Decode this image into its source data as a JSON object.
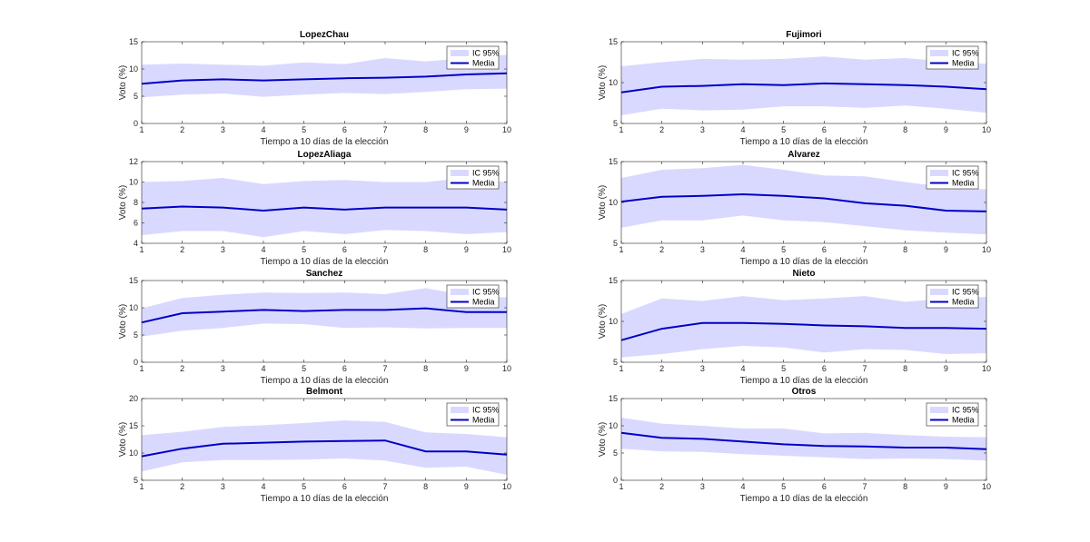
{
  "colors": {
    "band": "#d9d9ff",
    "line": "#0000c8",
    "axis": "#262626",
    "grid": "#e6e6e6"
  },
  "legend": {
    "band_label": "IC 95%",
    "line_label": "Media"
  },
  "chart_data": [
    {
      "type": "line",
      "title": "LopezChau",
      "xlabel": "Tiempo a 10 días de la elección",
      "ylabel": "Voto (%)",
      "x": [
        1,
        2,
        3,
        4,
        5,
        6,
        7,
        8,
        9,
        10
      ],
      "xlim": [
        1,
        10
      ],
      "ylim": [
        0,
        15
      ],
      "yticks": [
        0,
        5,
        10,
        15
      ],
      "legend_position": "top-right",
      "series": [
        {
          "name": "Media",
          "values": [
            7.3,
            7.9,
            8.1,
            7.9,
            8.1,
            8.3,
            8.4,
            8.6,
            9.0,
            9.2
          ]
        },
        {
          "name": "IC 95%",
          "lower": [
            4.8,
            5.3,
            5.5,
            4.9,
            5.3,
            5.6,
            5.4,
            5.8,
            6.3,
            6.4
          ],
          "upper": [
            10.8,
            11.0,
            10.8,
            10.6,
            11.2,
            10.9,
            12.0,
            11.4,
            12.0,
            12.6
          ]
        }
      ]
    },
    {
      "type": "line",
      "title": "Fujimori",
      "xlabel": "Tiempo a 10 días de la elección",
      "ylabel": "Voto (%)",
      "x": [
        1,
        2,
        3,
        4,
        5,
        6,
        7,
        8,
        9,
        10
      ],
      "xlim": [
        1,
        10
      ],
      "ylim": [
        5,
        15
      ],
      "yticks": [
        5,
        10,
        15
      ],
      "legend_position": "top-right",
      "series": [
        {
          "name": "Media",
          "values": [
            8.8,
            9.5,
            9.6,
            9.8,
            9.7,
            9.9,
            9.8,
            9.7,
            9.5,
            9.2
          ]
        },
        {
          "name": "IC 95%",
          "lower": [
            6.0,
            6.8,
            6.6,
            6.7,
            7.1,
            7.1,
            6.9,
            7.2,
            6.8,
            6.3
          ],
          "upper": [
            12.0,
            12.5,
            12.9,
            12.8,
            12.9,
            13.2,
            12.8,
            13.0,
            12.6,
            12.3
          ]
        }
      ]
    },
    {
      "type": "line",
      "title": "LopezAliaga",
      "xlabel": "Tiempo a 10 días de la elección",
      "ylabel": "Voto (%)",
      "x": [
        1,
        2,
        3,
        4,
        5,
        6,
        7,
        8,
        9,
        10
      ],
      "xlim": [
        1,
        10
      ],
      "ylim": [
        4,
        12
      ],
      "yticks": [
        4,
        6,
        8,
        10,
        12
      ],
      "legend_position": "top-right",
      "series": [
        {
          "name": "Media",
          "values": [
            7.4,
            7.6,
            7.5,
            7.2,
            7.5,
            7.3,
            7.5,
            7.5,
            7.5,
            7.3
          ]
        },
        {
          "name": "IC 95%",
          "lower": [
            4.8,
            5.2,
            5.2,
            4.6,
            5.2,
            4.9,
            5.3,
            5.2,
            4.9,
            5.1
          ],
          "upper": [
            10.0,
            10.1,
            10.4,
            9.8,
            10.1,
            10.2,
            10.0,
            10.0,
            10.4,
            10.0
          ]
        }
      ]
    },
    {
      "type": "line",
      "title": "Alvarez",
      "xlabel": "Tiempo a 10 días de la elección",
      "ylabel": "Voto (%)",
      "x": [
        1,
        2,
        3,
        4,
        5,
        6,
        7,
        8,
        9,
        10
      ],
      "xlim": [
        1,
        10
      ],
      "ylim": [
        5,
        15
      ],
      "yticks": [
        5,
        10,
        15
      ],
      "legend_position": "top-right",
      "series": [
        {
          "name": "Media",
          "values": [
            10.1,
            10.7,
            10.8,
            11.0,
            10.8,
            10.5,
            9.9,
            9.6,
            9.0,
            8.9
          ]
        },
        {
          "name": "IC 95%",
          "lower": [
            6.9,
            7.8,
            7.8,
            8.4,
            7.8,
            7.6,
            7.1,
            6.6,
            6.3,
            6.1
          ],
          "upper": [
            13.0,
            14.0,
            14.2,
            14.6,
            14.0,
            13.3,
            13.2,
            12.5,
            11.9,
            11.6
          ]
        }
      ]
    },
    {
      "type": "line",
      "title": "Sanchez",
      "xlabel": "Tiempo a 10 días de la elección",
      "ylabel": "Voto (%)",
      "x": [
        1,
        2,
        3,
        4,
        5,
        6,
        7,
        8,
        9,
        10
      ],
      "xlim": [
        1,
        10
      ],
      "ylim": [
        0,
        15
      ],
      "yticks": [
        0,
        5,
        10,
        15
      ],
      "legend_position": "top-right",
      "series": [
        {
          "name": "Media",
          "values": [
            7.3,
            9.0,
            9.3,
            9.6,
            9.4,
            9.6,
            9.6,
            9.9,
            9.2,
            9.2
          ]
        },
        {
          "name": "IC 95%",
          "lower": [
            4.7,
            5.8,
            6.3,
            7.1,
            7.0,
            6.3,
            6.4,
            6.2,
            6.3,
            6.3
          ],
          "upper": [
            9.9,
            11.8,
            12.4,
            12.8,
            12.7,
            12.8,
            12.5,
            13.6,
            12.3,
            11.9
          ]
        }
      ]
    },
    {
      "type": "line",
      "title": "Nieto",
      "xlabel": "Tiempo a 10 días de la elección",
      "ylabel": "Voto (%)",
      "x": [
        1,
        2,
        3,
        4,
        5,
        6,
        7,
        8,
        9,
        10
      ],
      "xlim": [
        1,
        10
      ],
      "ylim": [
        5,
        15
      ],
      "yticks": [
        5,
        10,
        15
      ],
      "legend_position": "top-right",
      "series": [
        {
          "name": "Media",
          "values": [
            7.7,
            9.1,
            9.8,
            9.8,
            9.7,
            9.5,
            9.4,
            9.2,
            9.2,
            9.1
          ]
        },
        {
          "name": "IC 95%",
          "lower": [
            5.6,
            6.0,
            6.6,
            7.0,
            6.8,
            6.2,
            6.6,
            6.5,
            6.0,
            6.1
          ],
          "upper": [
            10.9,
            12.8,
            12.5,
            13.1,
            12.6,
            12.8,
            13.1,
            12.4,
            12.8,
            13.0
          ]
        }
      ]
    },
    {
      "type": "line",
      "title": "Belmont",
      "xlabel": "Tiempo a 10 días de la elección",
      "ylabel": "Voto (%)",
      "x": [
        1,
        2,
        3,
        4,
        5,
        6,
        7,
        8,
        9,
        10
      ],
      "xlim": [
        1,
        10
      ],
      "ylim": [
        5,
        20
      ],
      "yticks": [
        5,
        10,
        15,
        20
      ],
      "legend_position": "top-right",
      "series": [
        {
          "name": "Media",
          "values": [
            9.4,
            10.8,
            11.7,
            11.9,
            12.1,
            12.2,
            12.3,
            10.3,
            10.3,
            9.7
          ]
        },
        {
          "name": "IC 95%",
          "lower": [
            6.6,
            8.3,
            8.7,
            8.7,
            8.8,
            9.0,
            8.6,
            7.3,
            7.5,
            6.0
          ],
          "upper": [
            13.3,
            13.9,
            14.8,
            15.1,
            15.5,
            16.0,
            15.7,
            13.8,
            13.5,
            12.9
          ]
        }
      ]
    },
    {
      "type": "line",
      "title": "Otros",
      "xlabel": "Tiempo a 10 días de la elección",
      "ylabel": "Voto (%)",
      "x": [
        1,
        2,
        3,
        4,
        5,
        6,
        7,
        8,
        9,
        10
      ],
      "xlim": [
        1,
        10
      ],
      "ylim": [
        0,
        15
      ],
      "yticks": [
        0,
        5,
        10,
        15
      ],
      "legend_position": "top-right",
      "series": [
        {
          "name": "Media",
          "values": [
            8.7,
            7.8,
            7.6,
            7.1,
            6.6,
            6.3,
            6.2,
            6.0,
            6.0,
            5.7
          ]
        },
        {
          "name": "IC 95%",
          "lower": [
            5.8,
            5.3,
            5.2,
            4.8,
            4.5,
            4.2,
            3.9,
            4.0,
            3.9,
            3.6
          ],
          "upper": [
            11.5,
            10.4,
            10.0,
            9.5,
            9.5,
            8.6,
            8.7,
            8.3,
            8.0,
            7.9
          ]
        }
      ]
    }
  ]
}
